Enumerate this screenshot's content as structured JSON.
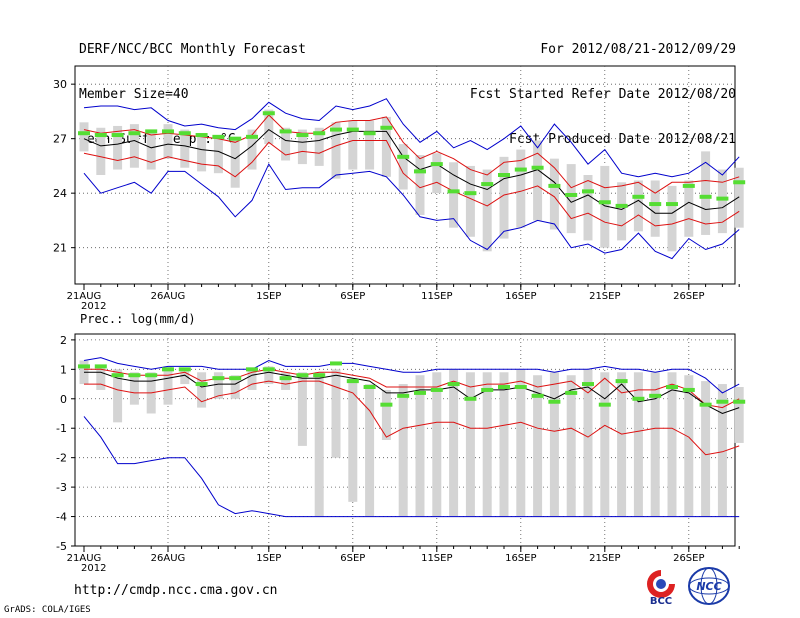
{
  "header": {
    "left": [
      "DERF/NCC/BCC Monthly Forecast",
      "Member Size=40",
      "Mean Surf. Temp.: °C"
    ],
    "right": [
      "For 2012/08/21-2012/09/29",
      "Fcst Started Refer Date 2012/08/20",
      "Fcst Produced Date 2012/08/21"
    ]
  },
  "footer": {
    "url": "http://cmdp.ncc.cma.gov.cn",
    "grads": "GrADS: COLA/IGES"
  },
  "logos": {
    "bcc": "BCC",
    "ncc": "NCC"
  },
  "colors": {
    "envelope": "#0000cc",
    "spread": "#dd1111",
    "mean": "#000000",
    "ensemble_box": "#d4d4d4",
    "ensemble_marker": "#55dd33"
  },
  "chart_data": [
    {
      "type": "line",
      "title": "Mean Surf. Temp.: °C",
      "ylim": [
        19,
        31
      ],
      "yticks": [
        21,
        24,
        27,
        30
      ],
      "ytick_labels": [
        "21",
        "24",
        "27",
        "30"
      ],
      "xtick_labels": [
        "21AUG\n2012",
        "26AUG",
        "1SEP",
        "6SEP",
        "11SEP",
        "16SEP",
        "21SEP",
        "26SEP"
      ],
      "x": [
        1,
        2,
        3,
        4,
        5,
        6,
        7,
        8,
        9,
        10,
        11,
        12,
        13,
        14,
        15,
        16,
        17,
        18,
        19,
        20,
        21,
        22,
        23,
        24,
        25,
        26,
        27,
        28,
        29,
        30,
        31,
        32,
        33,
        34,
        35,
        36,
        37,
        38,
        39,
        40
      ],
      "series": [
        {
          "name": "max",
          "color": "#0000cc",
          "values": [
            28.7,
            28.8,
            28.8,
            28.6,
            28.7,
            28.0,
            27.7,
            27.8,
            27.6,
            27.5,
            28.1,
            29.0,
            28.4,
            28.1,
            28.0,
            28.8,
            28.6,
            28.8,
            29.2,
            27.8,
            26.8,
            27.4,
            26.5,
            26.9,
            26.4,
            27.0,
            27.7,
            26.5,
            27.8,
            26.8,
            25.6,
            26.4,
            25.1,
            24.9,
            25.1,
            24.9,
            25.1,
            25.7,
            25.0,
            26.0
          ]
        },
        {
          "name": "upper",
          "color": "#dd1111",
          "values": [
            27.5,
            27.3,
            27.4,
            27.5,
            27.2,
            27.3,
            27.2,
            27.1,
            27.0,
            26.8,
            27.2,
            28.3,
            27.4,
            27.3,
            27.3,
            27.9,
            28.0,
            28.0,
            28.2,
            26.8,
            25.9,
            26.3,
            25.9,
            25.3,
            25.0,
            25.7,
            25.8,
            26.2,
            25.4,
            24.3,
            24.7,
            24.3,
            24.4,
            24.6,
            24.0,
            24.6,
            24.6,
            24.7,
            24.6,
            24.9
          ]
        },
        {
          "name": "mean",
          "color": "#000000",
          "values": [
            27.0,
            26.6,
            26.7,
            26.9,
            26.5,
            26.7,
            26.6,
            26.4,
            26.3,
            25.9,
            26.6,
            27.5,
            26.9,
            26.8,
            26.9,
            27.2,
            27.4,
            27.4,
            27.4,
            26.0,
            25.3,
            25.6,
            25.0,
            24.5,
            24.2,
            24.8,
            25.0,
            25.3,
            24.6,
            23.5,
            23.9,
            23.3,
            23.1,
            23.6,
            22.9,
            22.9,
            23.5,
            23.1,
            23.2,
            23.8
          ]
        },
        {
          "name": "lower",
          "color": "#dd1111",
          "values": [
            26.2,
            26.0,
            25.8,
            26.0,
            25.7,
            26.0,
            25.8,
            25.6,
            25.5,
            24.9,
            25.7,
            26.8,
            26.1,
            26.3,
            26.2,
            26.6,
            26.9,
            26.9,
            26.9,
            25.1,
            24.3,
            24.6,
            24.1,
            23.7,
            23.3,
            23.9,
            24.1,
            24.4,
            23.8,
            22.6,
            22.9,
            22.4,
            22.2,
            22.8,
            22.2,
            22.3,
            22.6,
            22.3,
            22.4,
            23.0
          ]
        },
        {
          "name": "min",
          "color": "#0000cc",
          "values": [
            25.1,
            24.0,
            24.3,
            24.6,
            24.0,
            25.2,
            25.2,
            24.5,
            23.8,
            22.7,
            23.6,
            25.6,
            24.2,
            24.3,
            24.3,
            25.0,
            25.1,
            25.2,
            24.9,
            23.9,
            22.7,
            22.5,
            22.6,
            21.4,
            20.9,
            21.9,
            22.1,
            22.5,
            22.3,
            21.0,
            21.2,
            20.7,
            20.9,
            21.8,
            20.8,
            20.4,
            21.5,
            20.9,
            21.2,
            22.0
          ]
        }
      ],
      "ensemble": {
        "box_low": [
          26.3,
          25.0,
          25.3,
          25.4,
          25.3,
          25.9,
          25.4,
          25.2,
          25.1,
          24.3,
          25.3,
          26.7,
          25.8,
          25.6,
          25.5,
          24.8,
          25.3,
          25.3,
          24.9,
          24.2,
          22.8,
          24.0,
          22.1,
          21.6,
          20.8,
          21.5,
          22.1,
          22.5,
          22.0,
          21.8,
          21.4,
          21.0,
          21.4,
          21.9,
          21.6,
          20.8,
          21.6,
          21.7,
          21.8,
          22.1
        ],
        "box_high": [
          27.9,
          27.6,
          27.7,
          27.8,
          27.4,
          27.8,
          27.5,
          27.3,
          27.2,
          26.9,
          27.5,
          28.6,
          27.6,
          27.5,
          27.6,
          27.9,
          28.0,
          28.0,
          28.2,
          26.7,
          26.1,
          26.2,
          25.7,
          25.5,
          25.3,
          26.0,
          26.4,
          26.9,
          25.9,
          25.6,
          25.0,
          25.5,
          24.6,
          24.7,
          24.7,
          24.4,
          24.7,
          26.3,
          25.3,
          25.4
        ],
        "marker": [
          27.3,
          27.2,
          27.2,
          27.3,
          27.4,
          27.4,
          27.3,
          27.2,
          27.1,
          27.0,
          27.1,
          28.4,
          27.4,
          27.2,
          27.3,
          27.5,
          27.5,
          27.3,
          27.6,
          26.0,
          25.2,
          25.6,
          24.1,
          24.0,
          24.5,
          25.0,
          25.3,
          25.4,
          24.4,
          23.9,
          24.1,
          23.5,
          23.3,
          23.8,
          23.4,
          23.4,
          24.4,
          23.8,
          23.7,
          24.6
        ]
      }
    },
    {
      "type": "line",
      "title": "Prec.: log(mm/d)",
      "ylim": [
        -5,
        2.2
      ],
      "yticks": [
        -5,
        -4,
        -3,
        -2,
        -1,
        0,
        1,
        2
      ],
      "ytick_labels": [
        "-5",
        "-4",
        "-3",
        "-2",
        "-1",
        "0",
        "1",
        "2"
      ],
      "xtick_labels": [
        "21AUG\n2012",
        "26AUG",
        "1SEP",
        "6SEP",
        "11SEP",
        "16SEP",
        "21SEP",
        "26SEP"
      ],
      "x": [
        1,
        2,
        3,
        4,
        5,
        6,
        7,
        8,
        9,
        10,
        11,
        12,
        13,
        14,
        15,
        16,
        17,
        18,
        19,
        20,
        21,
        22,
        23,
        24,
        25,
        26,
        27,
        28,
        29,
        30,
        31,
        32,
        33,
        34,
        35,
        36,
        37,
        38,
        39,
        40
      ],
      "series": [
        {
          "name": "max",
          "color": "#0000cc",
          "values": [
            1.3,
            1.4,
            1.2,
            1.1,
            1.0,
            1.1,
            1.1,
            1.1,
            1.0,
            1.0,
            1.0,
            1.3,
            1.1,
            1.1,
            1.1,
            1.2,
            1.2,
            1.1,
            1.0,
            0.9,
            0.9,
            1.0,
            1.0,
            1.0,
            1.0,
            1.0,
            1.0,
            1.0,
            0.9,
            1.0,
            1.0,
            1.1,
            1.0,
            1.0,
            0.9,
            1.0,
            1.0,
            0.7,
            0.2,
            0.5
          ]
        },
        {
          "name": "upper",
          "color": "#dd1111",
          "values": [
            1.0,
            1.0,
            0.9,
            0.8,
            0.8,
            0.8,
            0.9,
            0.6,
            0.7,
            0.7,
            0.9,
            1.0,
            0.9,
            0.8,
            0.9,
            0.9,
            0.8,
            0.7,
            0.4,
            0.4,
            0.4,
            0.4,
            0.6,
            0.4,
            0.5,
            0.5,
            0.6,
            0.4,
            0.5,
            0.6,
            0.2,
            0.7,
            0.2,
            0.3,
            0.3,
            0.5,
            0.3,
            -0.2,
            -0.3,
            0.0
          ]
        },
        {
          "name": "mean",
          "color": "#000000",
          "values": [
            0.9,
            0.9,
            0.7,
            0.6,
            0.6,
            0.7,
            0.8,
            0.4,
            0.5,
            0.5,
            0.8,
            0.9,
            0.8,
            0.7,
            0.7,
            0.8,
            0.7,
            0.6,
            0.2,
            0.2,
            0.3,
            0.3,
            0.4,
            0.0,
            0.3,
            0.3,
            0.4,
            0.2,
            0.0,
            0.3,
            0.4,
            0.0,
            0.5,
            -0.1,
            0.0,
            0.3,
            0.2,
            -0.2,
            -0.5,
            -0.3
          ]
        },
        {
          "name": "lower",
          "color": "#dd1111",
          "values": [
            0.5,
            0.5,
            0.3,
            0.2,
            0.2,
            0.3,
            0.4,
            -0.1,
            0.1,
            0.2,
            0.5,
            0.6,
            0.5,
            0.6,
            0.6,
            0.4,
            0.2,
            -0.4,
            -1.3,
            -1.0,
            -0.9,
            -0.8,
            -0.8,
            -1.0,
            -1.0,
            -0.9,
            -0.8,
            -1.0,
            -1.1,
            -1.0,
            -1.3,
            -0.9,
            -1.2,
            -1.1,
            -1.0,
            -1.0,
            -1.3,
            -1.9,
            -1.8,
            -1.6
          ]
        },
        {
          "name": "min",
          "color": "#0000cc",
          "values": [
            -0.6,
            -1.3,
            -2.2,
            -2.2,
            -2.1,
            -2.0,
            -2.0,
            -2.7,
            -3.6,
            -3.9,
            -3.8,
            -3.9,
            -4.0,
            -4.0,
            -4.0,
            -4.0,
            -4.0,
            -4.0,
            -4.0,
            -4.0,
            -4.0,
            -4.0,
            -4.0,
            -4.0,
            -4.0,
            -4.0,
            -4.0,
            -4.0,
            -4.0,
            -4.0,
            -4.0,
            -4.0,
            -4.0,
            -4.0,
            -4.0,
            -4.0,
            -4.0,
            -4.0,
            -4.0,
            -4.0
          ]
        }
      ],
      "ensemble": {
        "box_low": [
          0.5,
          0.3,
          -0.8,
          -0.2,
          -0.5,
          -0.2,
          0.5,
          -0.3,
          0.0,
          0.0,
          0.3,
          0.5,
          0.3,
          -1.6,
          -4.0,
          -2.0,
          -3.5,
          -4.0,
          -1.4,
          -4.0,
          -4.0,
          -4.0,
          -4.0,
          -4.0,
          -4.0,
          -4.0,
          -4.0,
          -4.0,
          -4.0,
          -4.0,
          -4.0,
          -4.0,
          -4.0,
          -4.0,
          -4.0,
          -4.0,
          -4.0,
          -4.0,
          -4.0,
          -1.5
        ],
        "box_high": [
          1.3,
          1.1,
          1.0,
          0.9,
          0.9,
          1.1,
          1.0,
          0.9,
          0.9,
          0.8,
          1.0,
          1.1,
          0.9,
          0.9,
          0.9,
          1.0,
          0.7,
          0.5,
          0.3,
          0.5,
          0.8,
          0.9,
          1.0,
          0.9,
          0.9,
          0.9,
          1.0,
          0.8,
          0.9,
          0.8,
          1.0,
          0.9,
          0.9,
          0.9,
          0.9,
          0.9,
          0.8,
          0.6,
          0.5,
          0.4
        ],
        "marker": [
          1.1,
          1.1,
          0.8,
          0.8,
          0.8,
          1.0,
          1.0,
          0.5,
          0.7,
          0.7,
          1.0,
          1.0,
          0.7,
          0.8,
          0.8,
          1.2,
          0.6,
          0.4,
          -0.2,
          0.1,
          0.2,
          0.3,
          0.5,
          0.0,
          0.3,
          0.4,
          0.4,
          0.1,
          -0.1,
          0.2,
          0.5,
          -0.2,
          0.6,
          0.0,
          0.1,
          0.4,
          0.3,
          -0.2,
          -0.1,
          -0.1
        ]
      }
    }
  ]
}
